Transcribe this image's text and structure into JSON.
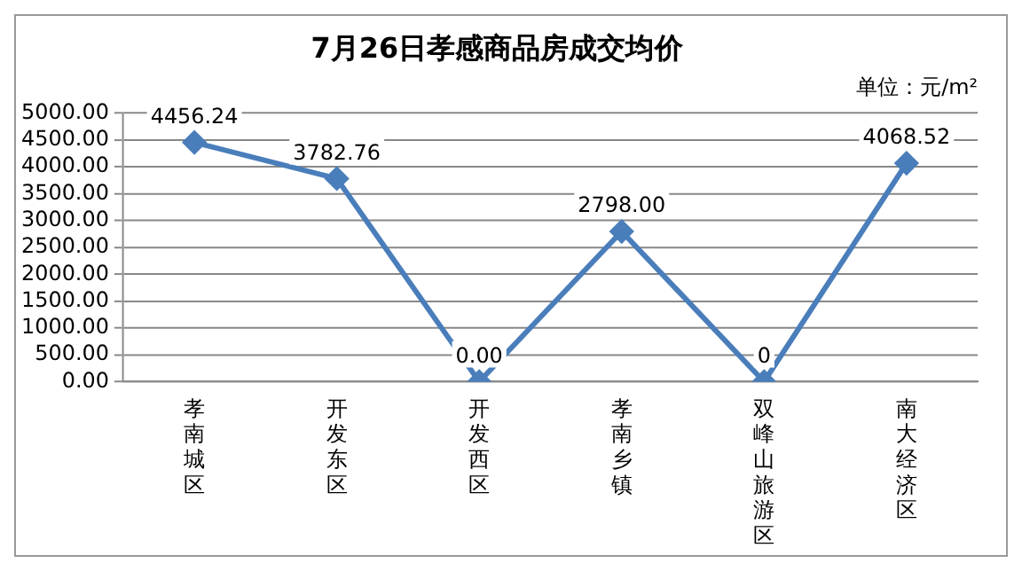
{
  "chart_data": {
    "type": "line",
    "title": "7月26日孝感商品房成交均价",
    "annotations": [
      "单位：元/m²"
    ],
    "categories": [
      "孝南城区",
      "开发东区",
      "开发西区",
      "孝南乡镇",
      "双峰山旅游区",
      "南大经济区"
    ],
    "series": [
      {
        "color": "#4a7ebb",
        "values": [
          4456.24,
          3782.76,
          0,
          2798,
          0,
          4068.52
        ],
        "value_labels": [
          "4456.24",
          "3782.76",
          "0.00",
          "2798.00",
          "0",
          "4068.52"
        ]
      }
    ],
    "ylim": [
      0,
      5000
    ],
    "yticks": [
      {
        "value": 0,
        "label": "0.00"
      },
      {
        "value": 500,
        "label": "500.00"
      },
      {
        "value": 1000,
        "label": "1000.00"
      },
      {
        "value": 1500,
        "label": "1500.00"
      },
      {
        "value": 2000,
        "label": "2000.00"
      },
      {
        "value": 2500,
        "label": "2500.00"
      },
      {
        "value": 3000,
        "label": "3000.00"
      },
      {
        "value": 3500,
        "label": "3500.00"
      },
      {
        "value": 4000,
        "label": "4000.00"
      },
      {
        "value": 4500,
        "label": "4500.00"
      },
      {
        "value": 5000,
        "label": "5000.00"
      }
    ],
    "grid": "y",
    "legend": false,
    "marker": "diamond",
    "line_style": "solid"
  }
}
